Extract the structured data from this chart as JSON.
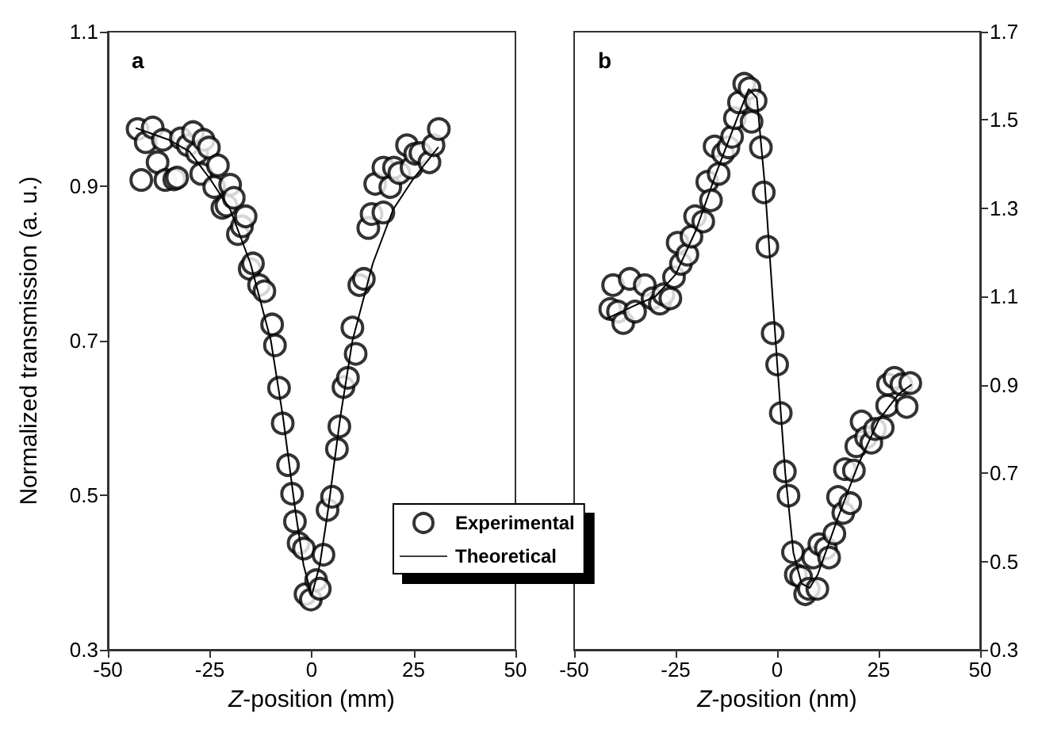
{
  "chart_data": [
    {
      "type": "scatter",
      "title": "a",
      "xlabel": "Z-position (mm)",
      "ylabel": "Normalized transmission (a. u.)",
      "xlim": [
        -50,
        50
      ],
      "xticks": [
        -50,
        -25,
        0,
        25,
        50
      ],
      "ylim": [
        0.3,
        1.1
      ],
      "yticks": [
        0.3,
        0.5,
        0.7,
        0.9,
        1.1
      ],
      "grid": false,
      "legend": "bottom right",
      "series": [
        {
          "name": "Experimental",
          "marker": "circle",
          "color": "#000000",
          "x": [
            -42.7,
            -41.8,
            -40.7,
            -39,
            -37.8,
            -36.5,
            -35.9,
            -33.7,
            -33,
            -32.1,
            -30.4,
            -29.1,
            -28.1,
            -27.1,
            -26.5,
            -25.2,
            -23.9,
            -23,
            -21.9,
            -20.9,
            -20,
            -19.1,
            -18.1,
            -17.1,
            -16.2,
            -15.2,
            -14.4,
            -12.9,
            -11.6,
            -9.7,
            -9,
            -8,
            -7.1,
            -5.8,
            -4.8,
            -4.1,
            -3.2,
            -1.9,
            -1.5,
            -0.2,
            1.1,
            2,
            2.9,
            3.9,
            5,
            6.2,
            6.8,
            7.8,
            8.9,
            10,
            10.8,
            11.7,
            12.8,
            13.9,
            14.7,
            15.6,
            17.6,
            17.6,
            19.3,
            20.2,
            21.5,
            23.4,
            24.5,
            25.4,
            26.7,
            28.9,
            29.9,
            31.2
          ],
          "values": [
            0.974,
            0.908,
            0.957,
            0.976,
            0.931,
            0.96,
            0.908,
            0.909,
            0.911,
            0.962,
            0.953,
            0.97,
            0.943,
            0.916,
            0.96,
            0.95,
            0.899,
            0.927,
            0.872,
            0.875,
            0.902,
            0.885,
            0.838,
            0.848,
            0.861,
            0.793,
            0.8,
            0.772,
            0.764,
            0.721,
            0.694,
            0.639,
            0.593,
            0.539,
            0.502,
            0.466,
            0.438,
            0.431,
            0.372,
            0.365,
            0.39,
            0.379,
            0.423,
            0.481,
            0.498,
            0.56,
            0.589,
            0.64,
            0.652,
            0.717,
            0.683,
            0.772,
            0.78,
            0.846,
            0.864,
            0.903,
            0.866,
            0.924,
            0.899,
            0.924,
            0.917,
            0.953,
            0.924,
            0.942,
            0.943,
            0.931,
            0.953,
            0.974
          ]
        },
        {
          "name": "Theoretical",
          "type": "line",
          "marker": "none",
          "line_style": "solid",
          "color": "#000000",
          "x": [
            -43,
            -35,
            -30,
            -25,
            -20,
            -15,
            -10,
            -7,
            -4,
            -2,
            0,
            2,
            4,
            7,
            10,
            15,
            20,
            25,
            31
          ],
          "values": [
            0.975,
            0.96,
            0.945,
            0.91,
            0.87,
            0.8,
            0.7,
            0.6,
            0.48,
            0.41,
            0.37,
            0.41,
            0.48,
            0.6,
            0.7,
            0.8,
            0.87,
            0.91,
            0.95
          ]
        }
      ]
    },
    {
      "type": "scatter",
      "title": "b",
      "xlabel": "Z-position (nm)",
      "xlim": [
        -50,
        50
      ],
      "xticks": [
        -50,
        -25,
        0,
        25,
        50
      ],
      "ylim": [
        0.3,
        1.7
      ],
      "yticks": [
        0.3,
        0.5,
        0.7,
        0.9,
        1.1,
        1.3,
        1.5,
        1.7
      ],
      "grid": false,
      "legend": false,
      "series": [
        {
          "marker": "circle",
          "color": "#000000",
          "x": [
            -41.1,
            -40.4,
            -39.2,
            -37.9,
            -36.3,
            -35,
            -32.6,
            -30.7,
            -28.9,
            -28,
            -26.3,
            -25.4,
            -24.5,
            -23.7,
            -22.1,
            -21.1,
            -20.2,
            -18.2,
            -17.2,
            -16.3,
            -15.4,
            -14.4,
            -13.3,
            -12,
            -11.1,
            -10.4,
            -9.4,
            -8.1,
            -6.8,
            -6.3,
            -5.3,
            -4,
            -3.3,
            -2.4,
            -1.1,
            0,
            0.9,
            1.9,
            2.8,
            3.9,
            4.6,
            5.9,
            6.9,
            7.8,
            8.9,
            9.9,
            10.4,
            12,
            12.8,
            14.1,
            15,
            16.3,
            16.7,
            18,
            18.9,
            19.5,
            20.8,
            21.9,
            23.2,
            24.1,
            26,
            27.1,
            27.3,
            28.9,
            30.6,
            31.9,
            32.8
          ],
          "values": [
            1.072,
            1.126,
            1.066,
            1.04,
            1.14,
            1.066,
            1.126,
            1.096,
            1.084,
            1.105,
            1.096,
            1.144,
            1.222,
            1.174,
            1.195,
            1.236,
            1.282,
            1.27,
            1.36,
            1.318,
            1.44,
            1.378,
            1.424,
            1.438,
            1.462,
            1.504,
            1.54,
            1.582,
            1.572,
            1.496,
            1.544,
            1.438,
            1.336,
            1.213,
            1.017,
            0.946,
            0.836,
            0.704,
            0.649,
            0.521,
            0.47,
            0.465,
            0.426,
            0.438,
            0.509,
            0.438,
            0.539,
            0.53,
            0.509,
            0.563,
            0.646,
            0.61,
            0.709,
            0.632,
            0.706,
            0.761,
            0.817,
            0.781,
            0.769,
            0.8,
            0.803,
            0.853,
            0.901,
            0.916,
            0.901,
            0.85,
            0.904
          ]
        },
        {
          "type": "line",
          "marker": "none",
          "line_style": "solid",
          "color": "#000000",
          "x": [
            -42,
            -35,
            -30,
            -25,
            -20,
            -15,
            -10,
            -7,
            -5,
            -3,
            0,
            2,
            4,
            6,
            8,
            10,
            15,
            20,
            25,
            30,
            33
          ],
          "values": [
            1.05,
            1.08,
            1.1,
            1.15,
            1.25,
            1.38,
            1.5,
            1.57,
            1.55,
            1.35,
            0.95,
            0.7,
            0.52,
            0.45,
            0.44,
            0.47,
            0.6,
            0.72,
            0.82,
            0.88,
            0.9
          ]
        }
      ]
    }
  ]
}
